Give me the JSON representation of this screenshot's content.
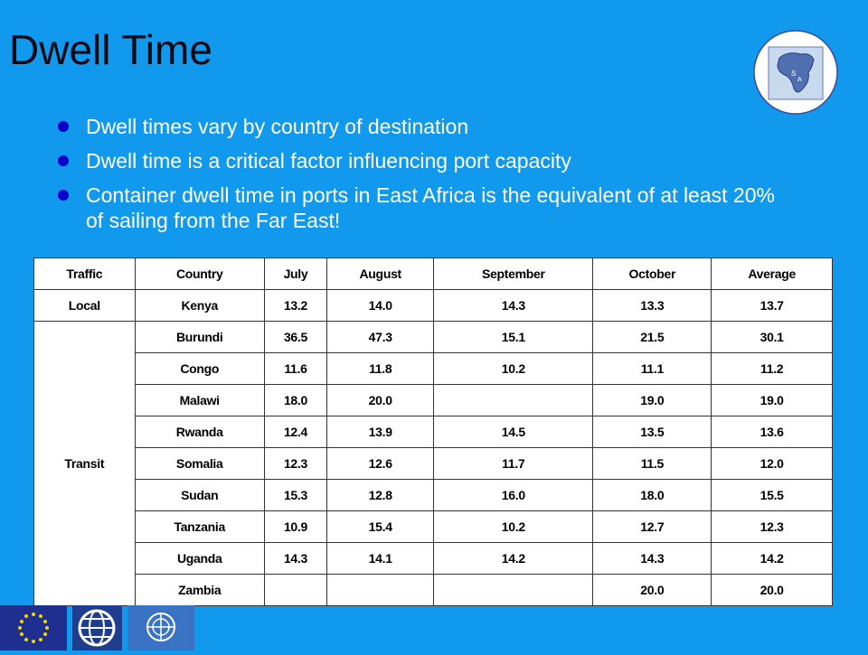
{
  "title": "Dwell Time",
  "bullets": [
    "Dwell times vary by country of destination",
    "Dwell time is a critical factor influencing port capacity",
    "Container dwell time in ports in East Africa is the equivalent of at least 20% of sailing from the Far East!"
  ],
  "logo": {
    "text": "SSATP",
    "icon": "africa-map-logo-icon"
  },
  "table": {
    "headers": [
      "Traffic",
      "Country",
      "July",
      "August",
      "September",
      "October",
      "Average"
    ],
    "local": {
      "traffic": "Local",
      "row": [
        "Kenya",
        "13.2",
        "14.0",
        "14.3",
        "13.3",
        "13.7"
      ]
    },
    "transit": {
      "traffic": "Transit",
      "rows": [
        [
          "Burundi",
          "36.5",
          "47.3",
          "15.1",
          "21.5",
          "30.1"
        ],
        [
          "Congo",
          "11.6",
          "11.8",
          "10.2",
          "11.1",
          "11.2"
        ],
        [
          "Malawi",
          "18.0",
          "20.0",
          "",
          "19.0",
          "19.0"
        ],
        [
          "Rwanda",
          "12.4",
          "13.9",
          "14.5",
          "13.5",
          "13.6"
        ],
        [
          "Somalia",
          "12.3",
          "12.6",
          "11.7",
          "11.5",
          "12.0"
        ],
        [
          "Sudan",
          "15.3",
          "12.8",
          "16.0",
          "18.0",
          "15.5"
        ],
        [
          "Tanzania",
          "10.9",
          "15.4",
          "10.2",
          "12.7",
          "12.3"
        ],
        [
          "Uganda",
          "14.3",
          "14.1",
          "14.2",
          "14.3",
          "14.2"
        ],
        [
          "Zambia",
          "",
          "",
          "",
          "20.0",
          "20.0"
        ]
      ]
    }
  },
  "footer_logos": [
    "eu-flag-icon",
    "world-bank-globe-icon",
    "un-emblem-icon"
  ],
  "colors": {
    "background": "#1199ee",
    "bullet": "#0000cc",
    "text": "#ffffff"
  }
}
